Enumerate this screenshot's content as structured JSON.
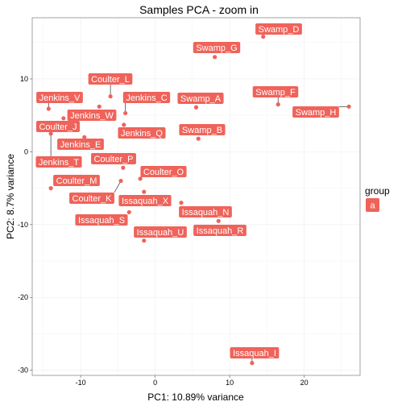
{
  "chart_data": {
    "type": "scatter",
    "title": "Samples PCA - zoom in",
    "xlabel": "PC1: 10.89% variance",
    "ylabel": "PC2: 8.7% variance",
    "xlim": [
      -16.5,
      27.5
    ],
    "ylim": [
      -30.7,
      18.4
    ],
    "x_ticks": [
      -10,
      0,
      10,
      20
    ],
    "y_ticks": [
      -30,
      -20,
      -10,
      0,
      10
    ],
    "grid": true,
    "legend": {
      "title": "group",
      "position": "right",
      "entries": [
        "a"
      ]
    },
    "colors": {
      "point": "#ef635a",
      "label_bg": "#ef635a",
      "grid": "#ececec",
      "panel_border": "#8c8c8c"
    },
    "points": [
      {
        "name": "Swamp_D",
        "x": 14.5,
        "y": 15.8
      },
      {
        "name": "Swamp_G",
        "x": 8.0,
        "y": 13.0
      },
      {
        "name": "Coulter_L",
        "x": -6.0,
        "y": 7.6
      },
      {
        "name": "Jenkins_V",
        "x": -14.3,
        "y": 5.9
      },
      {
        "name": "Jenkins_C",
        "x": -4.0,
        "y": 5.3
      },
      {
        "name": "Swamp_A",
        "x": 5.5,
        "y": 6.1
      },
      {
        "name": "Swamp_F",
        "x": 16.5,
        "y": 6.5
      },
      {
        "name": "Swamp_H",
        "x": 26.0,
        "y": 6.2
      },
      {
        "name": "Jenkins_W",
        "x": -7.5,
        "y": 6.2
      },
      {
        "name": "Coulter_J",
        "x": -12.3,
        "y": 4.6
      },
      {
        "name": "Jenkins_Q",
        "x": -4.2,
        "y": 3.7
      },
      {
        "name": "Swamp_B",
        "x": 5.8,
        "y": 1.8
      },
      {
        "name": "Jenkins_E",
        "x": -9.5,
        "y": 2.0
      },
      {
        "name": "Jenkins_T",
        "x": -14.0,
        "y": 2.5
      },
      {
        "name": "Coulter_P",
        "x": -4.3,
        "y": -2.2
      },
      {
        "name": "Coulter_O",
        "x": -2.0,
        "y": -3.7
      },
      {
        "name": "Coulter_M",
        "x": -14.0,
        "y": -5.0
      },
      {
        "name": "Coulter_K",
        "x": -4.6,
        "y": -4.0
      },
      {
        "name": "Issaquah_X",
        "x": -1.5,
        "y": -5.5
      },
      {
        "name": "Issaquah_N",
        "x": 3.5,
        "y": -7.0
      },
      {
        "name": "Issaquah_S",
        "x": -3.5,
        "y": -8.3
      },
      {
        "name": "Issaquah_R",
        "x": 8.5,
        "y": -9.5
      },
      {
        "name": "Issaquah_U",
        "x": -1.5,
        "y": -12.2
      },
      {
        "name": "Issaquah_I",
        "x": 13.0,
        "y": -29.0
      }
    ]
  }
}
